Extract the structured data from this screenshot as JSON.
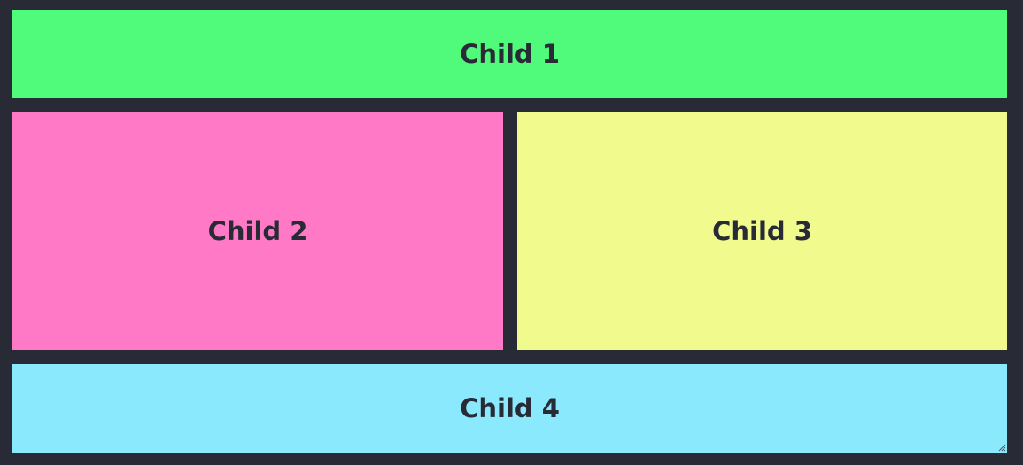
{
  "children": [
    {
      "label": "Child 1",
      "color": "#50fa7b"
    },
    {
      "label": "Child 2",
      "color": "#ff79c6"
    },
    {
      "label": "Child 3",
      "color": "#f1fa8c"
    },
    {
      "label": "Child 4",
      "color": "#8be9fd"
    }
  ],
  "theme": {
    "background": "#282a36",
    "text": "#282a36"
  },
  "icons": {
    "resize": "resize-grip-icon"
  }
}
